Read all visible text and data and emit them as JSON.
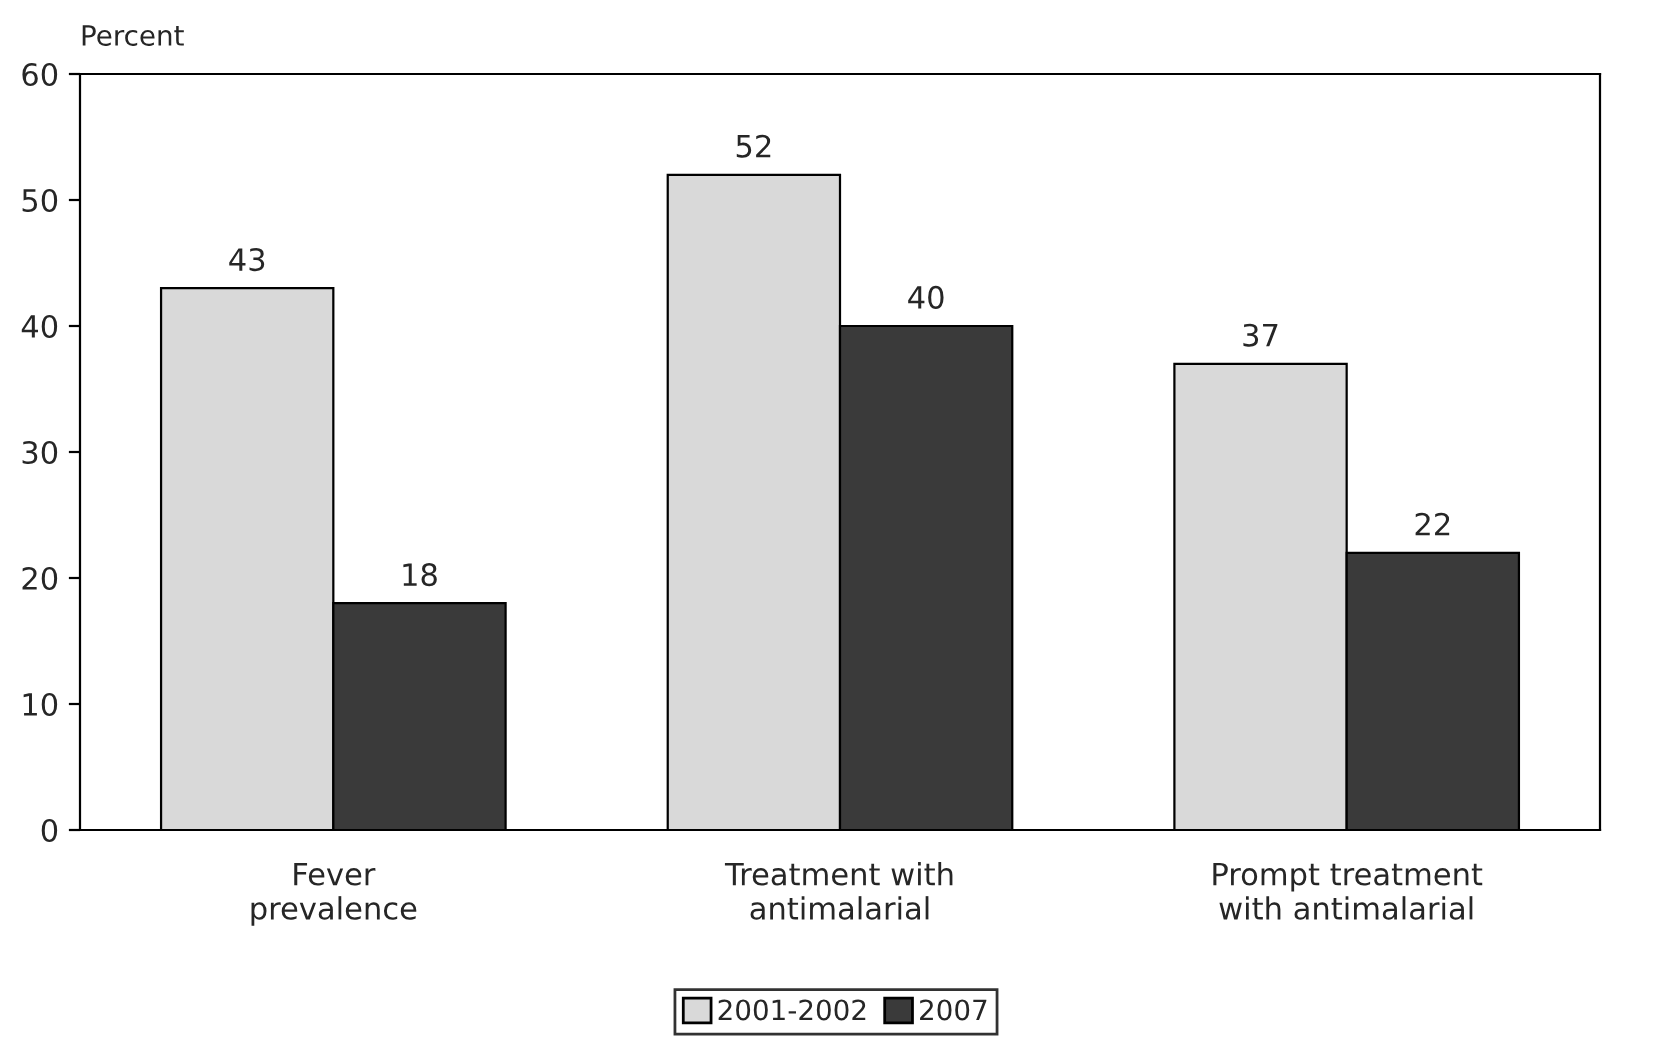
{
  "chart_data": {
    "type": "bar",
    "ylabel": "Percent",
    "categories": [
      "Fever\nprevalence",
      "Treatment with\nantimalarial",
      "Prompt treatment\nwith antimalarial"
    ],
    "series": [
      {
        "name": "2001-2002",
        "color": "#d9d9d9",
        "values": [
          43,
          52,
          37
        ]
      },
      {
        "name": "2007",
        "color": "#3a3a3a",
        "values": [
          18,
          40,
          22
        ]
      }
    ],
    "ylim": [
      0,
      60
    ],
    "yticks": [
      0,
      10,
      20,
      30,
      40,
      50,
      60
    ],
    "data_labels": true,
    "grid": false,
    "legend": "bottom"
  }
}
